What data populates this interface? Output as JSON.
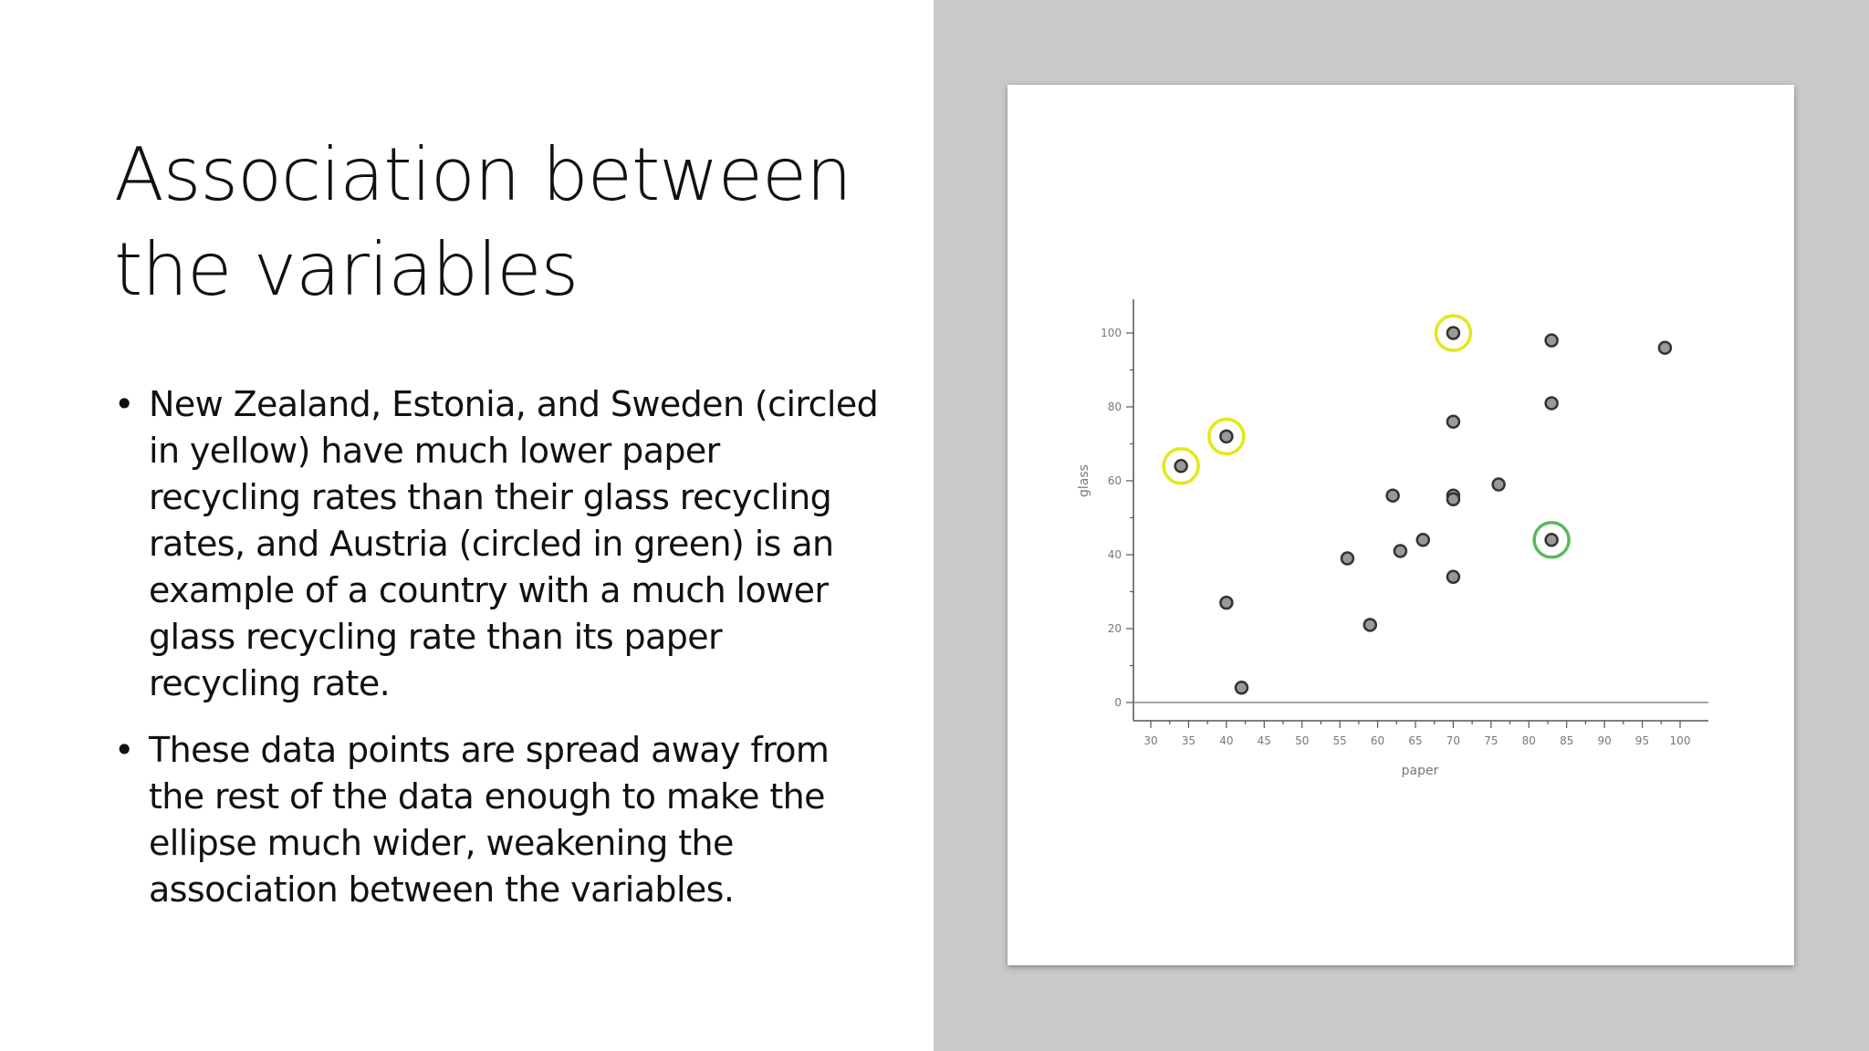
{
  "slide": {
    "title": "Association between the variables",
    "bullets": [
      "New Zealand, Estonia, and Sweden (circled in yellow) have much lower paper recycling rates than their glass recycling rates, and Austria (circled in green) is an example of a country with a much lower glass recycling rate than its paper recycling rate.",
      "These data points are spread away from the rest of the data enough to make the ellipse much wider, weakening the association between the variables."
    ]
  },
  "chart_data": {
    "type": "scatter",
    "title": "",
    "xlabel": "paper",
    "ylabel": "glass",
    "xlim": [
      30,
      100
    ],
    "ylim": [
      0,
      100
    ],
    "xticks": [
      30,
      35,
      40,
      45,
      50,
      55,
      60,
      65,
      70,
      75,
      80,
      85,
      90,
      95,
      100
    ],
    "yticks": [
      0,
      20,
      40,
      60,
      80,
      100
    ],
    "grid": false,
    "points": [
      {
        "x": 34,
        "y": 64,
        "highlight": "yellow"
      },
      {
        "x": 40,
        "y": 72,
        "highlight": "yellow"
      },
      {
        "x": 70,
        "y": 100,
        "highlight": "yellow"
      },
      {
        "x": 83,
        "y": 44,
        "highlight": "green"
      },
      {
        "x": 40,
        "y": 27
      },
      {
        "x": 42,
        "y": 4
      },
      {
        "x": 56,
        "y": 39
      },
      {
        "x": 59,
        "y": 21
      },
      {
        "x": 62,
        "y": 56
      },
      {
        "x": 63,
        "y": 41
      },
      {
        "x": 66,
        "y": 44
      },
      {
        "x": 70,
        "y": 76
      },
      {
        "x": 70,
        "y": 56
      },
      {
        "x": 70,
        "y": 55
      },
      {
        "x": 70,
        "y": 34
      },
      {
        "x": 76,
        "y": 59
      },
      {
        "x": 83,
        "y": 98
      },
      {
        "x": 83,
        "y": 81
      },
      {
        "x": 98,
        "y": 96
      }
    ],
    "colors": {
      "point_fill": "#999999",
      "point_stroke": "#333333",
      "yellow": "#e6e619",
      "green": "#5cb85c",
      "axis": "#555555"
    }
  }
}
